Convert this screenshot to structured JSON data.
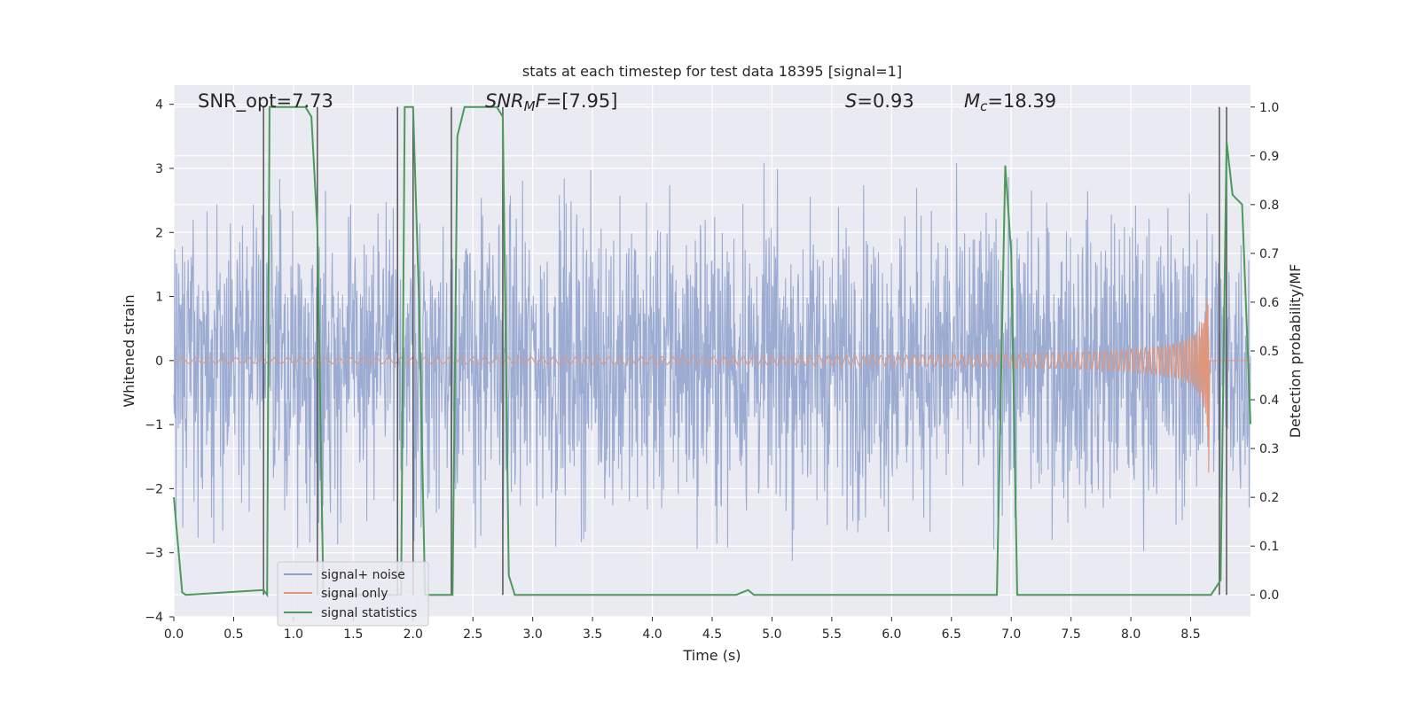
{
  "chart_data": {
    "type": "line",
    "title": "stats at each timestep for test data 18395 [signal=1]",
    "xlabel": "Time (s)",
    "ylabel": "Whitened strain",
    "y2label": "Detection probability/MF",
    "xlim": [
      0.0,
      9.0
    ],
    "ylim": [
      -4.0,
      4.3
    ],
    "y2lim": [
      -0.045,
      1.045
    ],
    "x_ticks": [
      "0.0",
      "0.5",
      "1.0",
      "1.5",
      "2.0",
      "2.5",
      "3.0",
      "3.5",
      "4.0",
      "4.5",
      "5.0",
      "5.5",
      "6.0",
      "6.5",
      "7.0",
      "7.5",
      "8.0",
      "8.5"
    ],
    "x_tick_values": [
      0.0,
      0.5,
      1.0,
      1.5,
      2.0,
      2.5,
      3.0,
      3.5,
      4.0,
      4.5,
      5.0,
      5.5,
      6.0,
      6.5,
      7.0,
      7.5,
      8.0,
      8.5
    ],
    "y_ticks": [
      "4",
      "3",
      "2",
      "1",
      "0",
      "−1",
      "−2",
      "−3",
      "−4"
    ],
    "y_tick_values": [
      4,
      3,
      2,
      1,
      0,
      -1,
      -2,
      -3,
      -4
    ],
    "y2_ticks": [
      "1.0",
      "0.9",
      "0.8",
      "0.7",
      "0.6",
      "0.5",
      "0.4",
      "0.3",
      "0.2",
      "0.1",
      "0.0"
    ],
    "y2_tick_values": [
      1.0,
      0.9,
      0.8,
      0.7,
      0.6,
      0.5,
      0.4,
      0.3,
      0.2,
      0.1,
      0.0
    ],
    "grid": true,
    "legend_position": "lower-left",
    "annotations": {
      "snr_opt": "SNR_opt=7.73",
      "snr_mf_italic": "SNR",
      "snr_mf_sub": "M",
      "snr_mf_rest_italic": "F",
      "snr_mf_value": "=[7.95]",
      "s_italic": "S",
      "s_value": "=0.93",
      "mc_italic": "M",
      "mc_sub": "c",
      "mc_value": "=18.39"
    },
    "series": [
      {
        "name": "signal+ noise",
        "color": "#8da0cb",
        "style": "noise band",
        "sample_rate_note": "dense whitened noise, typical amplitude about ±2, peaks to about ±4"
      },
      {
        "name": "signal only",
        "color": "#e0967b",
        "style": "chirp",
        "chirp_peak_time": 8.65,
        "chirp_peak_amplitude": 1.6
      },
      {
        "name": "signal statistics",
        "color": "#4c9a5a",
        "axis": "right",
        "x": [
          0.0,
          0.07,
          0.1,
          0.75,
          0.78,
          0.8,
          1.1,
          1.15,
          1.2,
          1.25,
          1.3,
          1.9,
          1.93,
          1.95,
          2.0,
          2.05,
          2.1,
          2.33,
          2.37,
          2.43,
          2.7,
          2.75,
          2.8,
          2.85,
          4.7,
          4.8,
          4.85,
          4.9,
          6.88,
          6.95,
          7.0,
          7.05,
          7.5,
          8.67,
          8.75,
          8.8,
          8.85,
          8.93,
          9.0
        ],
        "y": [
          0.2,
          0.005,
          0.0,
          0.01,
          0.0,
          1.0,
          1.0,
          0.98,
          0.75,
          0.0,
          0.0,
          0.0,
          1.0,
          1.0,
          1.0,
          0.6,
          0.0,
          0.0,
          0.94,
          1.0,
          1.0,
          0.98,
          0.04,
          0.0,
          0.0,
          0.01,
          0.0,
          0.0,
          0.0,
          0.88,
          0.7,
          0.0,
          0.0,
          0.0,
          0.03,
          0.93,
          0.82,
          0.8,
          0.35
        ]
      }
    ],
    "vertical_lines": [
      0.75,
      1.2,
      1.87,
      2.0,
      2.32,
      2.75,
      8.74,
      8.8
    ],
    "vertical_line_color": "#555555",
    "background_color": "#eaeaf2"
  }
}
